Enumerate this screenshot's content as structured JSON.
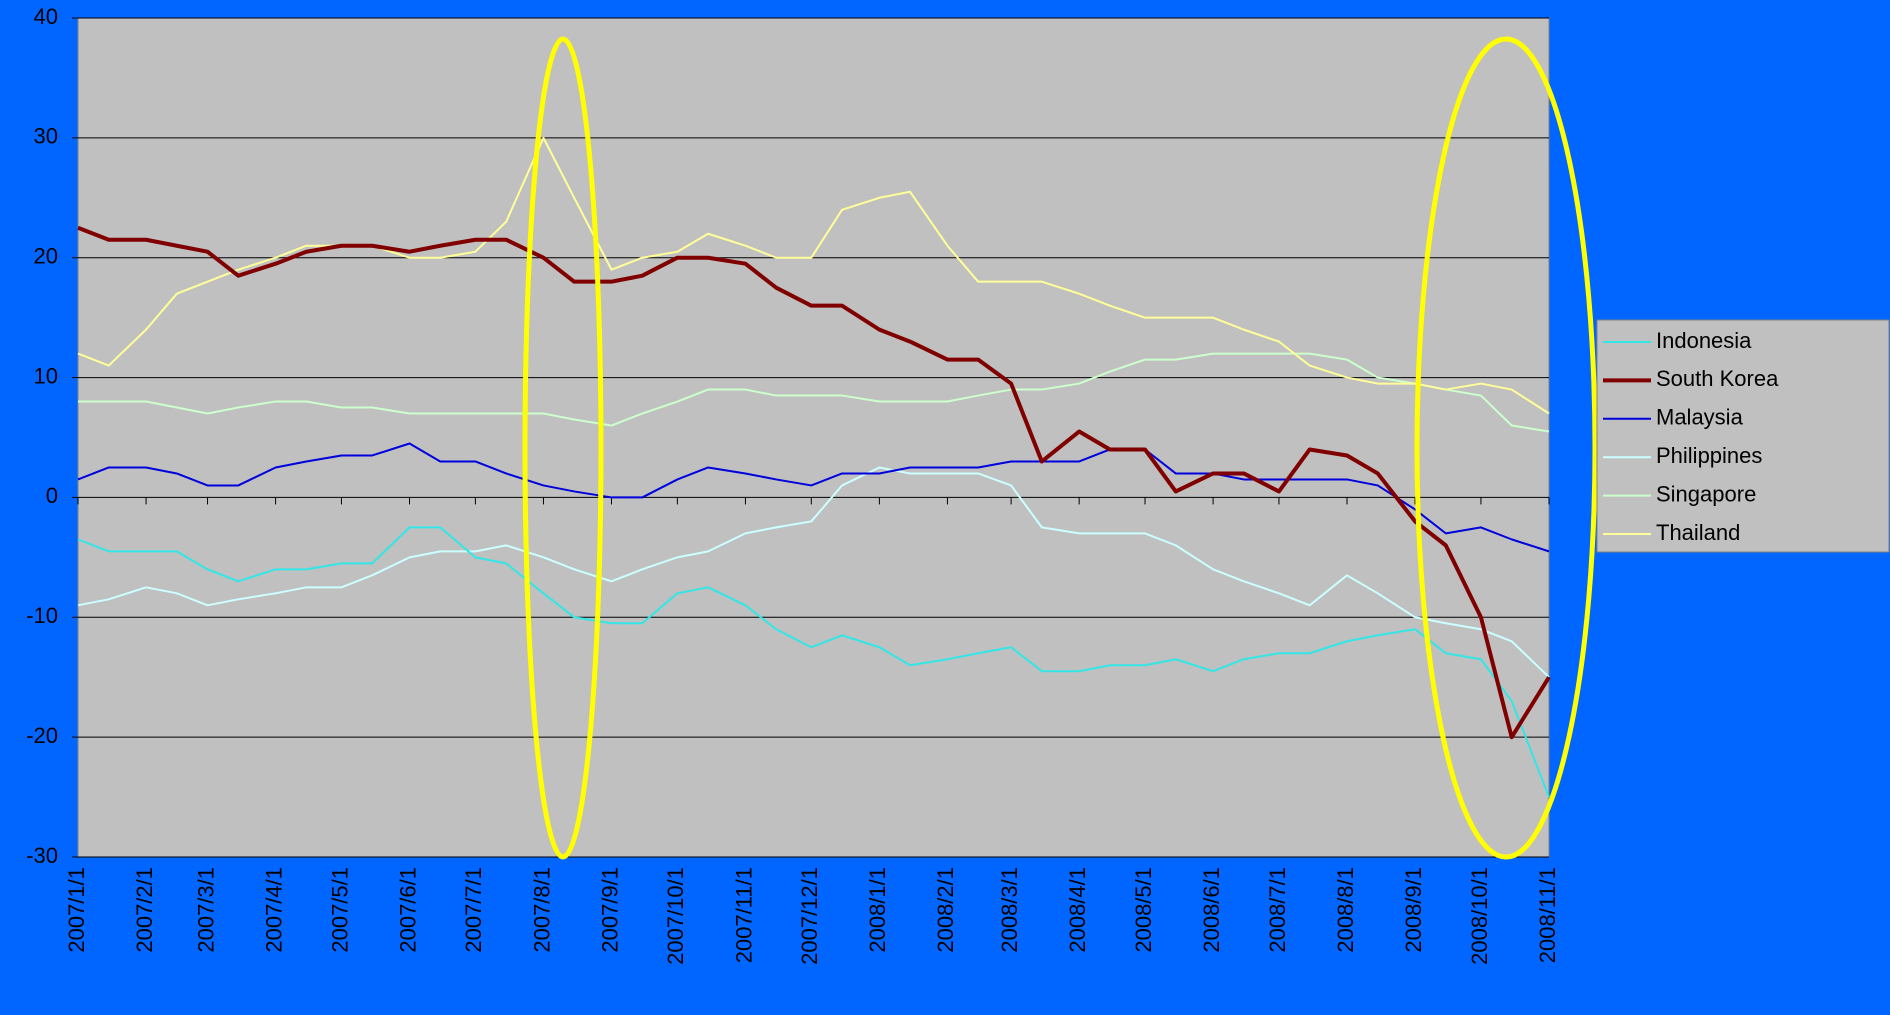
{
  "chart_data": {
    "type": "line",
    "x": [
      "2007/1/1",
      "2007/1/15",
      "2007/2/1",
      "2007/2/15",
      "2007/3/1",
      "2007/3/15",
      "2007/4/1",
      "2007/4/15",
      "2007/5/1",
      "2007/5/15",
      "2007/6/1",
      "2007/6/15",
      "2007/7/1",
      "2007/7/15",
      "2007/8/1",
      "2007/8/15",
      "2007/9/1",
      "2007/9/15",
      "2007/10/1",
      "2007/10/15",
      "2007/11/1",
      "2007/11/15",
      "2007/12/1",
      "2007/12/15",
      "2008/1/1",
      "2008/1/15",
      "2008/2/1",
      "2008/2/15",
      "2008/3/1",
      "2008/3/15",
      "2008/4/1",
      "2008/4/15",
      "2008/5/1",
      "2008/5/15",
      "2008/6/1",
      "2008/6/15",
      "2008/7/1",
      "2008/7/15",
      "2008/8/1",
      "2008/8/15",
      "2008/9/1",
      "2008/9/15",
      "2008/10/1",
      "2008/10/15",
      "2008/11/1"
    ],
    "xlim": [
      "2007/1/1",
      "2008/11/1"
    ],
    "xticks": [
      "2007/1/1",
      "2007/2/1",
      "2007/3/1",
      "2007/4/1",
      "2007/5/1",
      "2007/6/1",
      "2007/7/1",
      "2007/8/1",
      "2007/9/1",
      "2007/10/1",
      "2007/11/1",
      "2007/12/1",
      "2008/1/1",
      "2008/2/1",
      "2008/3/1",
      "2008/4/1",
      "2008/5/1",
      "2008/6/1",
      "2008/7/1",
      "2008/8/1",
      "2008/9/1",
      "2008/10/1",
      "2008/11/1"
    ],
    "ylim": [
      -30,
      40
    ],
    "yticks": [
      -30,
      -20,
      -10,
      0,
      10,
      20,
      30,
      40
    ],
    "grid": true,
    "legend": "right",
    "series": [
      {
        "name": "Indonesia",
        "color": "#33e6e6",
        "width": 2,
        "values": [
          -3.5,
          -4.5,
          -4.5,
          -4.5,
          -6,
          -7,
          -6,
          -6,
          -5.5,
          -5.5,
          -2.5,
          -2.5,
          -5,
          -5.5,
          -8,
          -10,
          -10.5,
          -10.5,
          -8,
          -7.5,
          -9,
          -11,
          -12.5,
          -11.5,
          -12.5,
          -14,
          -13.5,
          -13,
          -12.5,
          -14.5,
          -14.5,
          -14,
          -14,
          -13.5,
          -14.5,
          -13.5,
          -13,
          -13,
          -12,
          -11.5,
          -11,
          -13,
          -13.5,
          -17,
          -25
        ]
      },
      {
        "name": "South Korea",
        "color": "#800000",
        "width": 4,
        "values": [
          22.5,
          21.5,
          21.5,
          21,
          20.5,
          18.5,
          19.5,
          20.5,
          21,
          21,
          20.5,
          21,
          21.5,
          21.5,
          20,
          18,
          18,
          18.5,
          20,
          20,
          19.5,
          17.5,
          16,
          16,
          14,
          13,
          11.5,
          11.5,
          9.5,
          3,
          5.5,
          4,
          4,
          0.5,
          2,
          2,
          0.5,
          4,
          3.5,
          2,
          -2,
          -4,
          -10,
          -20,
          -15
        ]
      },
      {
        "name": "Malaysia",
        "color": "#0000dd",
        "width": 2,
        "values": [
          1.5,
          2.5,
          2.5,
          2,
          1,
          1,
          2.5,
          3,
          3.5,
          3.5,
          4.5,
          3,
          3,
          2,
          1,
          0.5,
          0,
          0,
          1.5,
          2.5,
          2,
          1.5,
          1,
          2,
          2,
          2.5,
          2.5,
          2.5,
          3,
          3,
          3,
          4,
          4,
          2,
          2,
          1.5,
          1.5,
          1.5,
          1.5,
          1,
          -1,
          -3,
          -2.5,
          -3.5,
          -4.5
        ]
      },
      {
        "name": "Philippines",
        "color": "#ccffff",
        "width": 2,
        "values": [
          -9,
          -8.5,
          -7.5,
          -8,
          -9,
          -8.5,
          -8,
          -7.5,
          -7.5,
          -6.5,
          -5,
          -4.5,
          -4.5,
          -4,
          -5,
          -6,
          -7,
          -6,
          -5,
          -4.5,
          -3,
          -2.5,
          -2,
          1,
          2.5,
          2,
          2,
          2,
          1,
          -2.5,
          -3,
          -3,
          -3,
          -4,
          -6,
          -7,
          -8,
          -9,
          -6.5,
          -8,
          -10,
          -10.5,
          -11,
          -12,
          -15
        ]
      },
      {
        "name": "Singapore",
        "color": "#ccffcc",
        "width": 2,
        "values": [
          8,
          8,
          8,
          7.5,
          7,
          7.5,
          8,
          8,
          7.5,
          7.5,
          7,
          7,
          7,
          7,
          7,
          6.5,
          6,
          7,
          8,
          9,
          9,
          8.5,
          8.5,
          8.5,
          8,
          8,
          8,
          8.5,
          9,
          9,
          9.5,
          10.5,
          11.5,
          11.5,
          12,
          12,
          12,
          12,
          11.5,
          10,
          9.5,
          9,
          8.5,
          6,
          5.5
        ]
      },
      {
        "name": "Thailand",
        "color": "#ffff99",
        "width": 2,
        "values": [
          12,
          11,
          14,
          17,
          18,
          19,
          20,
          21,
          21,
          21,
          20,
          20,
          20.5,
          23,
          30,
          25,
          19,
          20,
          20.5,
          22,
          21,
          20,
          20,
          24,
          25,
          25.5,
          21,
          18,
          18,
          18,
          17,
          16,
          15,
          15,
          15,
          14,
          13,
          11,
          10,
          9.5,
          9.5,
          9,
          9.5,
          9,
          7
        ]
      }
    ]
  }
}
